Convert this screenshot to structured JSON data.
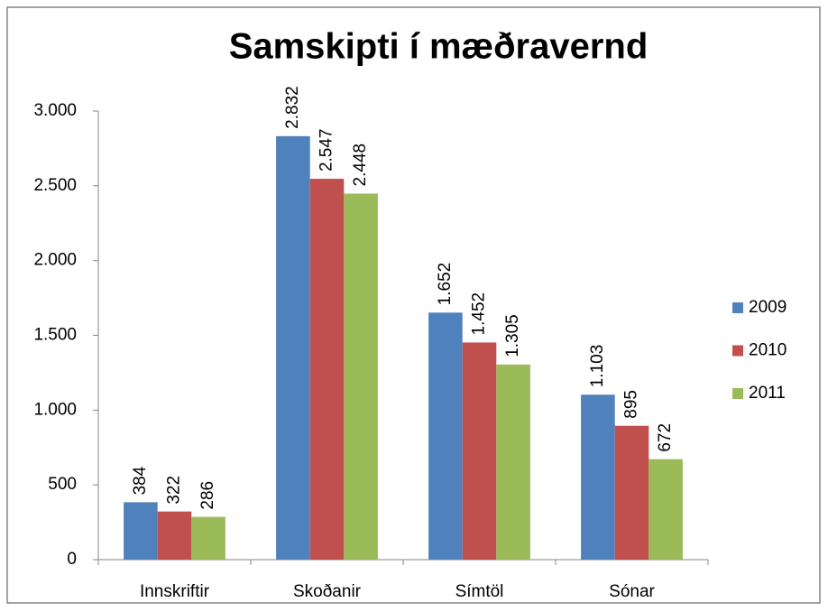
{
  "chart_data": {
    "type": "bar",
    "title": "Samskipti í mæðravernd",
    "categories": [
      "Innskriftir",
      "Skoðanir",
      "Símtöl",
      "Sónar"
    ],
    "series": [
      {
        "name": "2009",
        "color": "#4f81bd",
        "values": [
          384,
          2832,
          1652,
          1103
        ],
        "value_labels": [
          "384",
          "2.832",
          "1.652",
          "1.103"
        ]
      },
      {
        "name": "2010",
        "color": "#c0504d",
        "values": [
          322,
          2547,
          1452,
          895
        ],
        "value_labels": [
          "322",
          "2.547",
          "1.452",
          "895"
        ]
      },
      {
        "name": "2011",
        "color": "#9bbb59",
        "values": [
          286,
          2448,
          1305,
          672
        ],
        "value_labels": [
          "286",
          "2.448",
          "1.305",
          "672"
        ]
      }
    ],
    "ylim": [
      0,
      3000
    ],
    "yticks": [
      0,
      500,
      {
        "value": 1000,
        "label": "1.000"
      },
      {
        "value": 1500,
        "label": "1.500"
      },
      {
        "value": 2000,
        "label": "2.000"
      },
      {
        "value": 2500,
        "label": "2.500"
      },
      {
        "value": 3000,
        "label": "3.000"
      }
    ],
    "grid": false,
    "legend": "right"
  }
}
